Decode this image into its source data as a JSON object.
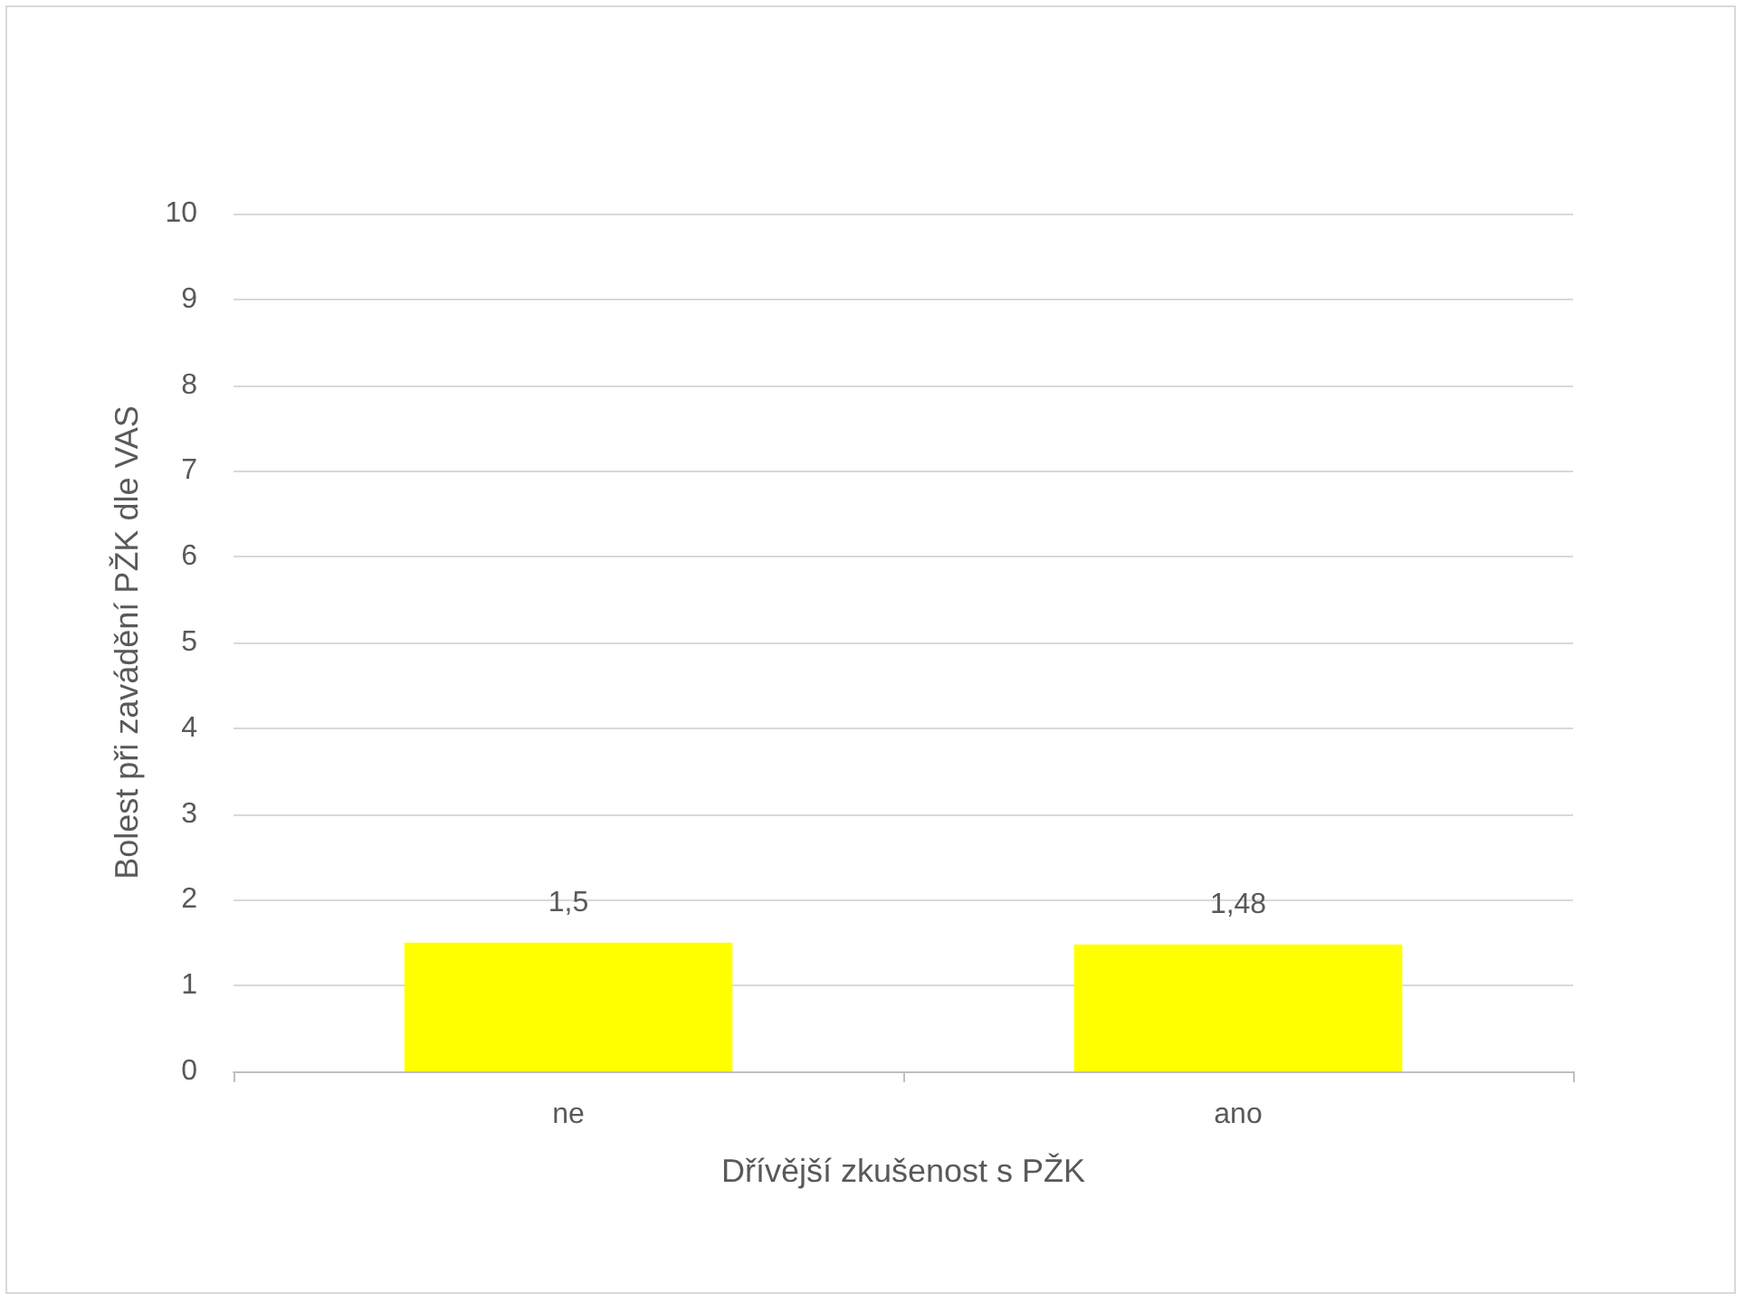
{
  "chart_data": {
    "type": "bar",
    "xlabel": "Dřívější zkušenost s PŽK",
    "ylabel": "Bolest při zavádění PŽK dle VAS",
    "categories": [
      "ne",
      "ano"
    ],
    "values": [
      1.5,
      1.48
    ],
    "value_labels": [
      "1,5",
      "1,48"
    ],
    "color": "#ffff00",
    "ylim": [
      0,
      10
    ],
    "yticks": [
      0,
      1,
      2,
      3,
      4,
      5,
      6,
      7,
      8,
      9,
      10
    ],
    "grid": "y"
  }
}
